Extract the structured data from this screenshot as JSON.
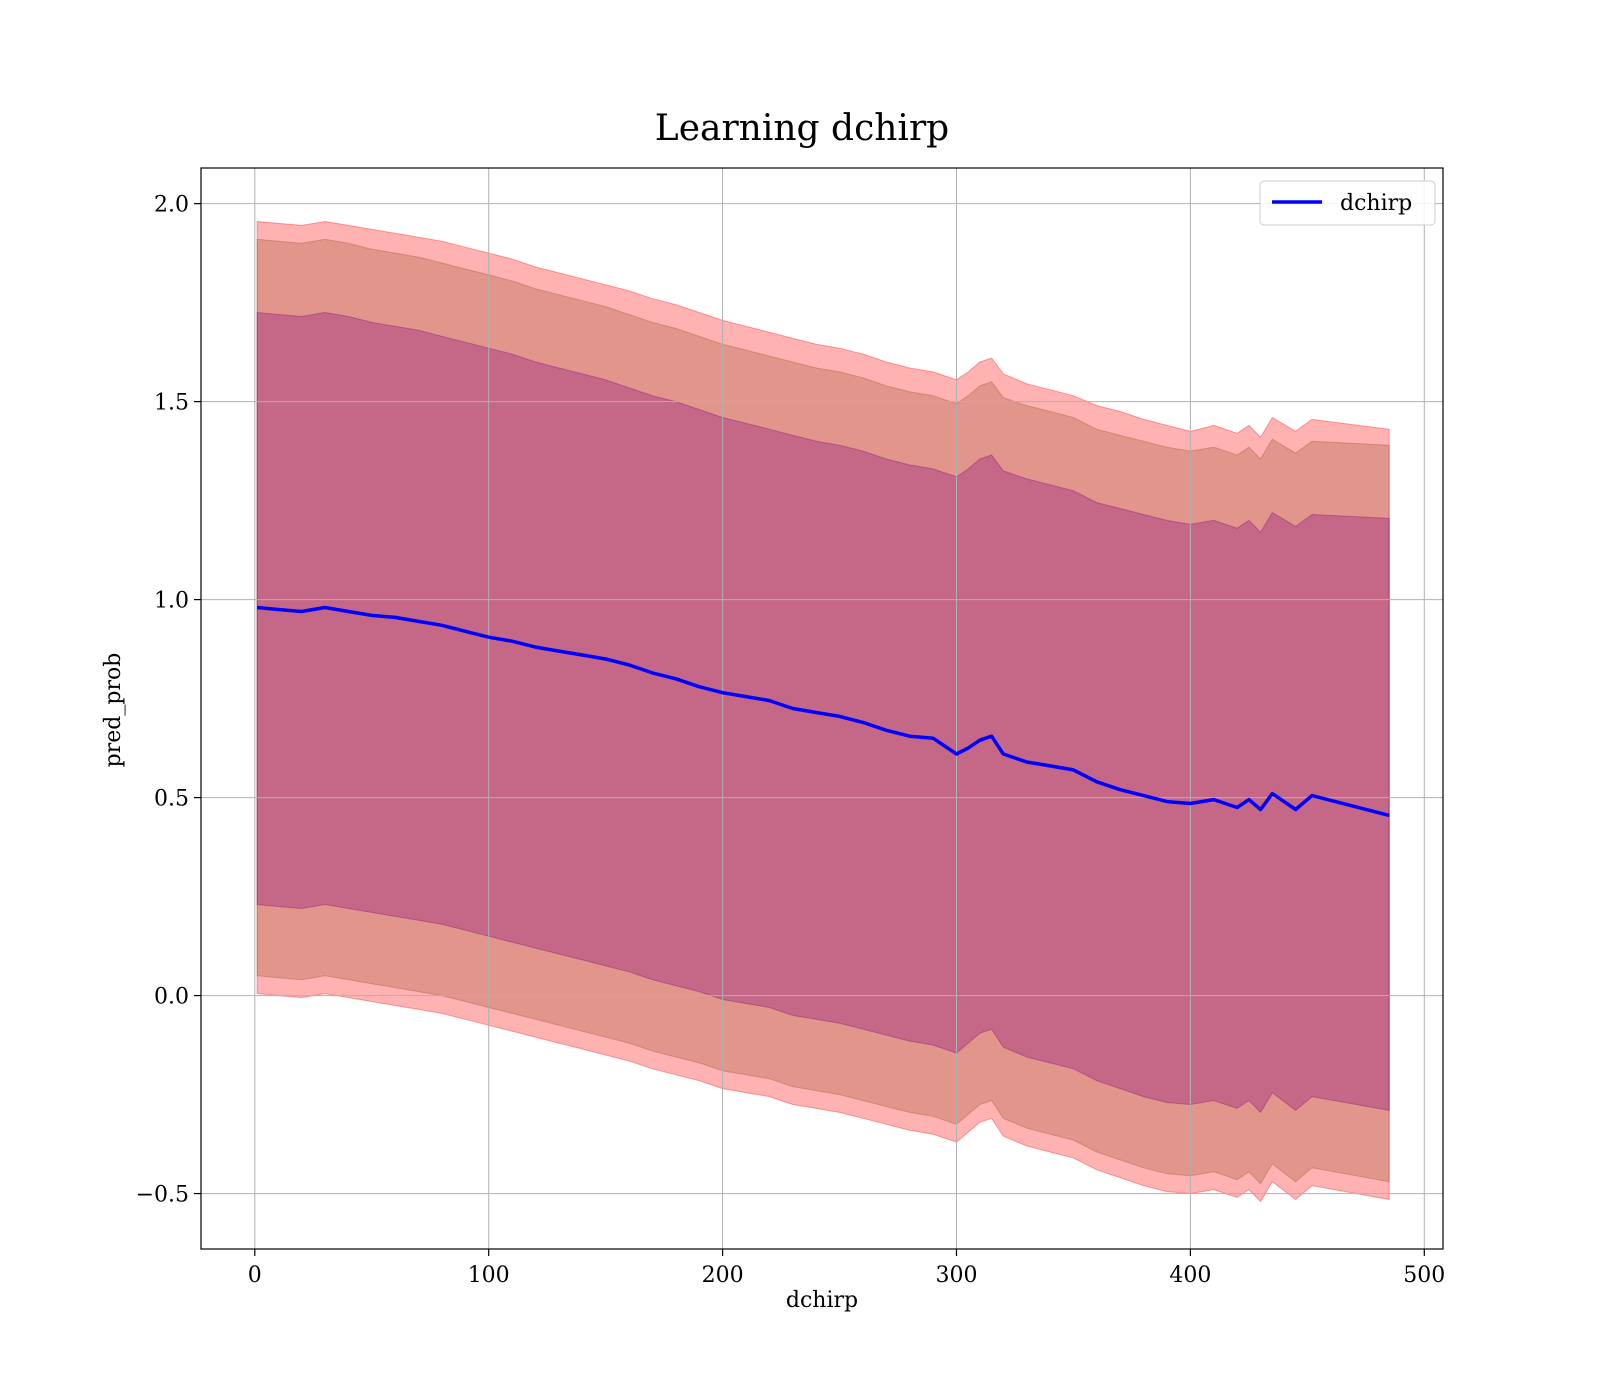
{
  "chart_data": {
    "type": "line",
    "title": "Learning dchirp",
    "xlabel": "dchirp",
    "ylabel": "pred_prob",
    "xlim": [
      -23,
      508
    ],
    "ylim": [
      -0.64,
      2.09
    ],
    "xticks": [
      0,
      100,
      200,
      300,
      400,
      500
    ],
    "yticks": [
      -0.5,
      0.0,
      0.5,
      1.0,
      1.5,
      2.0
    ],
    "xtick_labels": [
      "0",
      "100",
      "200",
      "300",
      "400",
      "500"
    ],
    "ytick_labels": [
      "−0.5",
      "0.0",
      "0.5",
      "1.0",
      "1.5",
      "2.0"
    ],
    "grid": true,
    "legend": {
      "position": "top-right",
      "entries": [
        "dchirp"
      ]
    },
    "colors": {
      "line": "#0000ff",
      "band_outer": "#ff0000",
      "band_middle": "#a0522d",
      "band_inner": "#800080",
      "grid": "#b0b0b0"
    },
    "series": [
      {
        "name": "dchirp",
        "x": [
          1,
          10,
          20,
          30,
          40,
          50,
          60,
          70,
          80,
          90,
          100,
          110,
          120,
          130,
          140,
          150,
          160,
          170,
          180,
          190,
          200,
          210,
          220,
          230,
          240,
          250,
          260,
          270,
          280,
          290,
          300,
          305,
          310,
          315,
          320,
          330,
          340,
          350,
          360,
          370,
          380,
          390,
          400,
          410,
          420,
          425,
          430,
          435,
          445,
          452,
          485
        ],
        "y": [
          0.98,
          0.975,
          0.97,
          0.98,
          0.97,
          0.96,
          0.955,
          0.945,
          0.935,
          0.92,
          0.905,
          0.895,
          0.88,
          0.87,
          0.86,
          0.85,
          0.835,
          0.815,
          0.8,
          0.78,
          0.765,
          0.755,
          0.745,
          0.725,
          0.715,
          0.705,
          0.69,
          0.67,
          0.655,
          0.65,
          0.61,
          0.625,
          0.645,
          0.655,
          0.61,
          0.59,
          0.58,
          0.57,
          0.54,
          0.52,
          0.505,
          0.49,
          0.485,
          0.495,
          0.475,
          0.495,
          0.47,
          0.51,
          0.47,
          0.505,
          0.455
        ]
      }
    ],
    "bands": [
      {
        "name": "outer",
        "x": [
          1,
          10,
          20,
          30,
          40,
          50,
          60,
          70,
          80,
          90,
          100,
          110,
          120,
          130,
          140,
          150,
          160,
          170,
          180,
          190,
          200,
          210,
          220,
          230,
          240,
          250,
          260,
          270,
          280,
          290,
          300,
          305,
          310,
          315,
          320,
          330,
          340,
          350,
          360,
          370,
          380,
          390,
          400,
          410,
          420,
          425,
          430,
          435,
          445,
          452,
          485
        ],
        "upper": [
          1.955,
          1.95,
          1.945,
          1.955,
          1.945,
          1.935,
          1.925,
          1.915,
          1.905,
          1.89,
          1.875,
          1.86,
          1.84,
          1.825,
          1.81,
          1.795,
          1.78,
          1.76,
          1.745,
          1.725,
          1.705,
          1.69,
          1.675,
          1.66,
          1.645,
          1.635,
          1.62,
          1.6,
          1.585,
          1.575,
          1.555,
          1.575,
          1.6,
          1.61,
          1.57,
          1.545,
          1.53,
          1.515,
          1.49,
          1.475,
          1.455,
          1.44,
          1.425,
          1.44,
          1.42,
          1.44,
          1.41,
          1.46,
          1.425,
          1.455,
          1.43
        ],
        "lower": [
          0.005,
          0.0,
          -0.005,
          0.005,
          -0.005,
          -0.015,
          -0.025,
          -0.035,
          -0.045,
          -0.06,
          -0.075,
          -0.09,
          -0.105,
          -0.12,
          -0.135,
          -0.15,
          -0.165,
          -0.185,
          -0.2,
          -0.215,
          -0.235,
          -0.245,
          -0.255,
          -0.275,
          -0.285,
          -0.295,
          -0.31,
          -0.325,
          -0.34,
          -0.35,
          -0.37,
          -0.345,
          -0.32,
          -0.31,
          -0.355,
          -0.38,
          -0.395,
          -0.41,
          -0.44,
          -0.46,
          -0.48,
          -0.495,
          -0.5,
          -0.49,
          -0.51,
          -0.49,
          -0.52,
          -0.47,
          -0.515,
          -0.48,
          -0.515
        ]
      },
      {
        "name": "middle",
        "x": [
          1,
          10,
          20,
          30,
          40,
          50,
          60,
          70,
          80,
          90,
          100,
          110,
          120,
          130,
          140,
          150,
          160,
          170,
          180,
          190,
          200,
          210,
          220,
          230,
          240,
          250,
          260,
          270,
          280,
          290,
          300,
          305,
          310,
          315,
          320,
          330,
          340,
          350,
          360,
          370,
          380,
          390,
          400,
          410,
          420,
          425,
          430,
          435,
          445,
          452,
          485
        ],
        "upper": [
          1.91,
          1.905,
          1.9,
          1.91,
          1.9,
          1.885,
          1.875,
          1.865,
          1.85,
          1.835,
          1.82,
          1.805,
          1.785,
          1.77,
          1.755,
          1.74,
          1.72,
          1.7,
          1.685,
          1.665,
          1.645,
          1.63,
          1.615,
          1.6,
          1.585,
          1.575,
          1.56,
          1.54,
          1.525,
          1.515,
          1.495,
          1.515,
          1.54,
          1.55,
          1.51,
          1.49,
          1.475,
          1.46,
          1.43,
          1.415,
          1.4,
          1.385,
          1.375,
          1.385,
          1.365,
          1.385,
          1.355,
          1.405,
          1.37,
          1.4,
          1.39
        ],
        "lower": [
          0.05,
          0.045,
          0.04,
          0.05,
          0.04,
          0.03,
          0.02,
          0.01,
          0.0,
          -0.015,
          -0.03,
          -0.045,
          -0.06,
          -0.075,
          -0.09,
          -0.105,
          -0.12,
          -0.14,
          -0.155,
          -0.17,
          -0.19,
          -0.2,
          -0.21,
          -0.23,
          -0.24,
          -0.25,
          -0.265,
          -0.28,
          -0.295,
          -0.305,
          -0.325,
          -0.3,
          -0.275,
          -0.265,
          -0.31,
          -0.335,
          -0.35,
          -0.365,
          -0.395,
          -0.415,
          -0.435,
          -0.45,
          -0.455,
          -0.445,
          -0.465,
          -0.445,
          -0.475,
          -0.425,
          -0.47,
          -0.435,
          -0.47
        ]
      },
      {
        "name": "inner",
        "x": [
          1,
          10,
          20,
          30,
          40,
          50,
          60,
          70,
          80,
          90,
          100,
          110,
          120,
          130,
          140,
          150,
          160,
          170,
          180,
          190,
          200,
          210,
          220,
          230,
          240,
          250,
          260,
          270,
          280,
          290,
          300,
          305,
          310,
          315,
          320,
          330,
          340,
          350,
          360,
          370,
          380,
          390,
          400,
          410,
          420,
          425,
          430,
          435,
          445,
          452,
          485
        ],
        "upper": [
          1.725,
          1.72,
          1.715,
          1.725,
          1.715,
          1.7,
          1.69,
          1.68,
          1.665,
          1.65,
          1.635,
          1.62,
          1.6,
          1.585,
          1.57,
          1.555,
          1.535,
          1.515,
          1.5,
          1.48,
          1.46,
          1.445,
          1.43,
          1.415,
          1.4,
          1.39,
          1.375,
          1.355,
          1.34,
          1.33,
          1.31,
          1.33,
          1.355,
          1.365,
          1.325,
          1.305,
          1.29,
          1.275,
          1.245,
          1.23,
          1.215,
          1.2,
          1.19,
          1.2,
          1.18,
          1.2,
          1.17,
          1.22,
          1.185,
          1.215,
          1.205
        ],
        "lower": [
          0.23,
          0.225,
          0.22,
          0.23,
          0.22,
          0.21,
          0.2,
          0.19,
          0.18,
          0.165,
          0.15,
          0.135,
          0.12,
          0.105,
          0.09,
          0.075,
          0.06,
          0.04,
          0.025,
          0.01,
          -0.01,
          -0.02,
          -0.03,
          -0.05,
          -0.06,
          -0.07,
          -0.085,
          -0.1,
          -0.115,
          -0.125,
          -0.145,
          -0.12,
          -0.095,
          -0.085,
          -0.13,
          -0.155,
          -0.17,
          -0.185,
          -0.215,
          -0.235,
          -0.255,
          -0.27,
          -0.275,
          -0.265,
          -0.285,
          -0.265,
          -0.295,
          -0.245,
          -0.29,
          -0.255,
          -0.29
        ]
      }
    ]
  }
}
